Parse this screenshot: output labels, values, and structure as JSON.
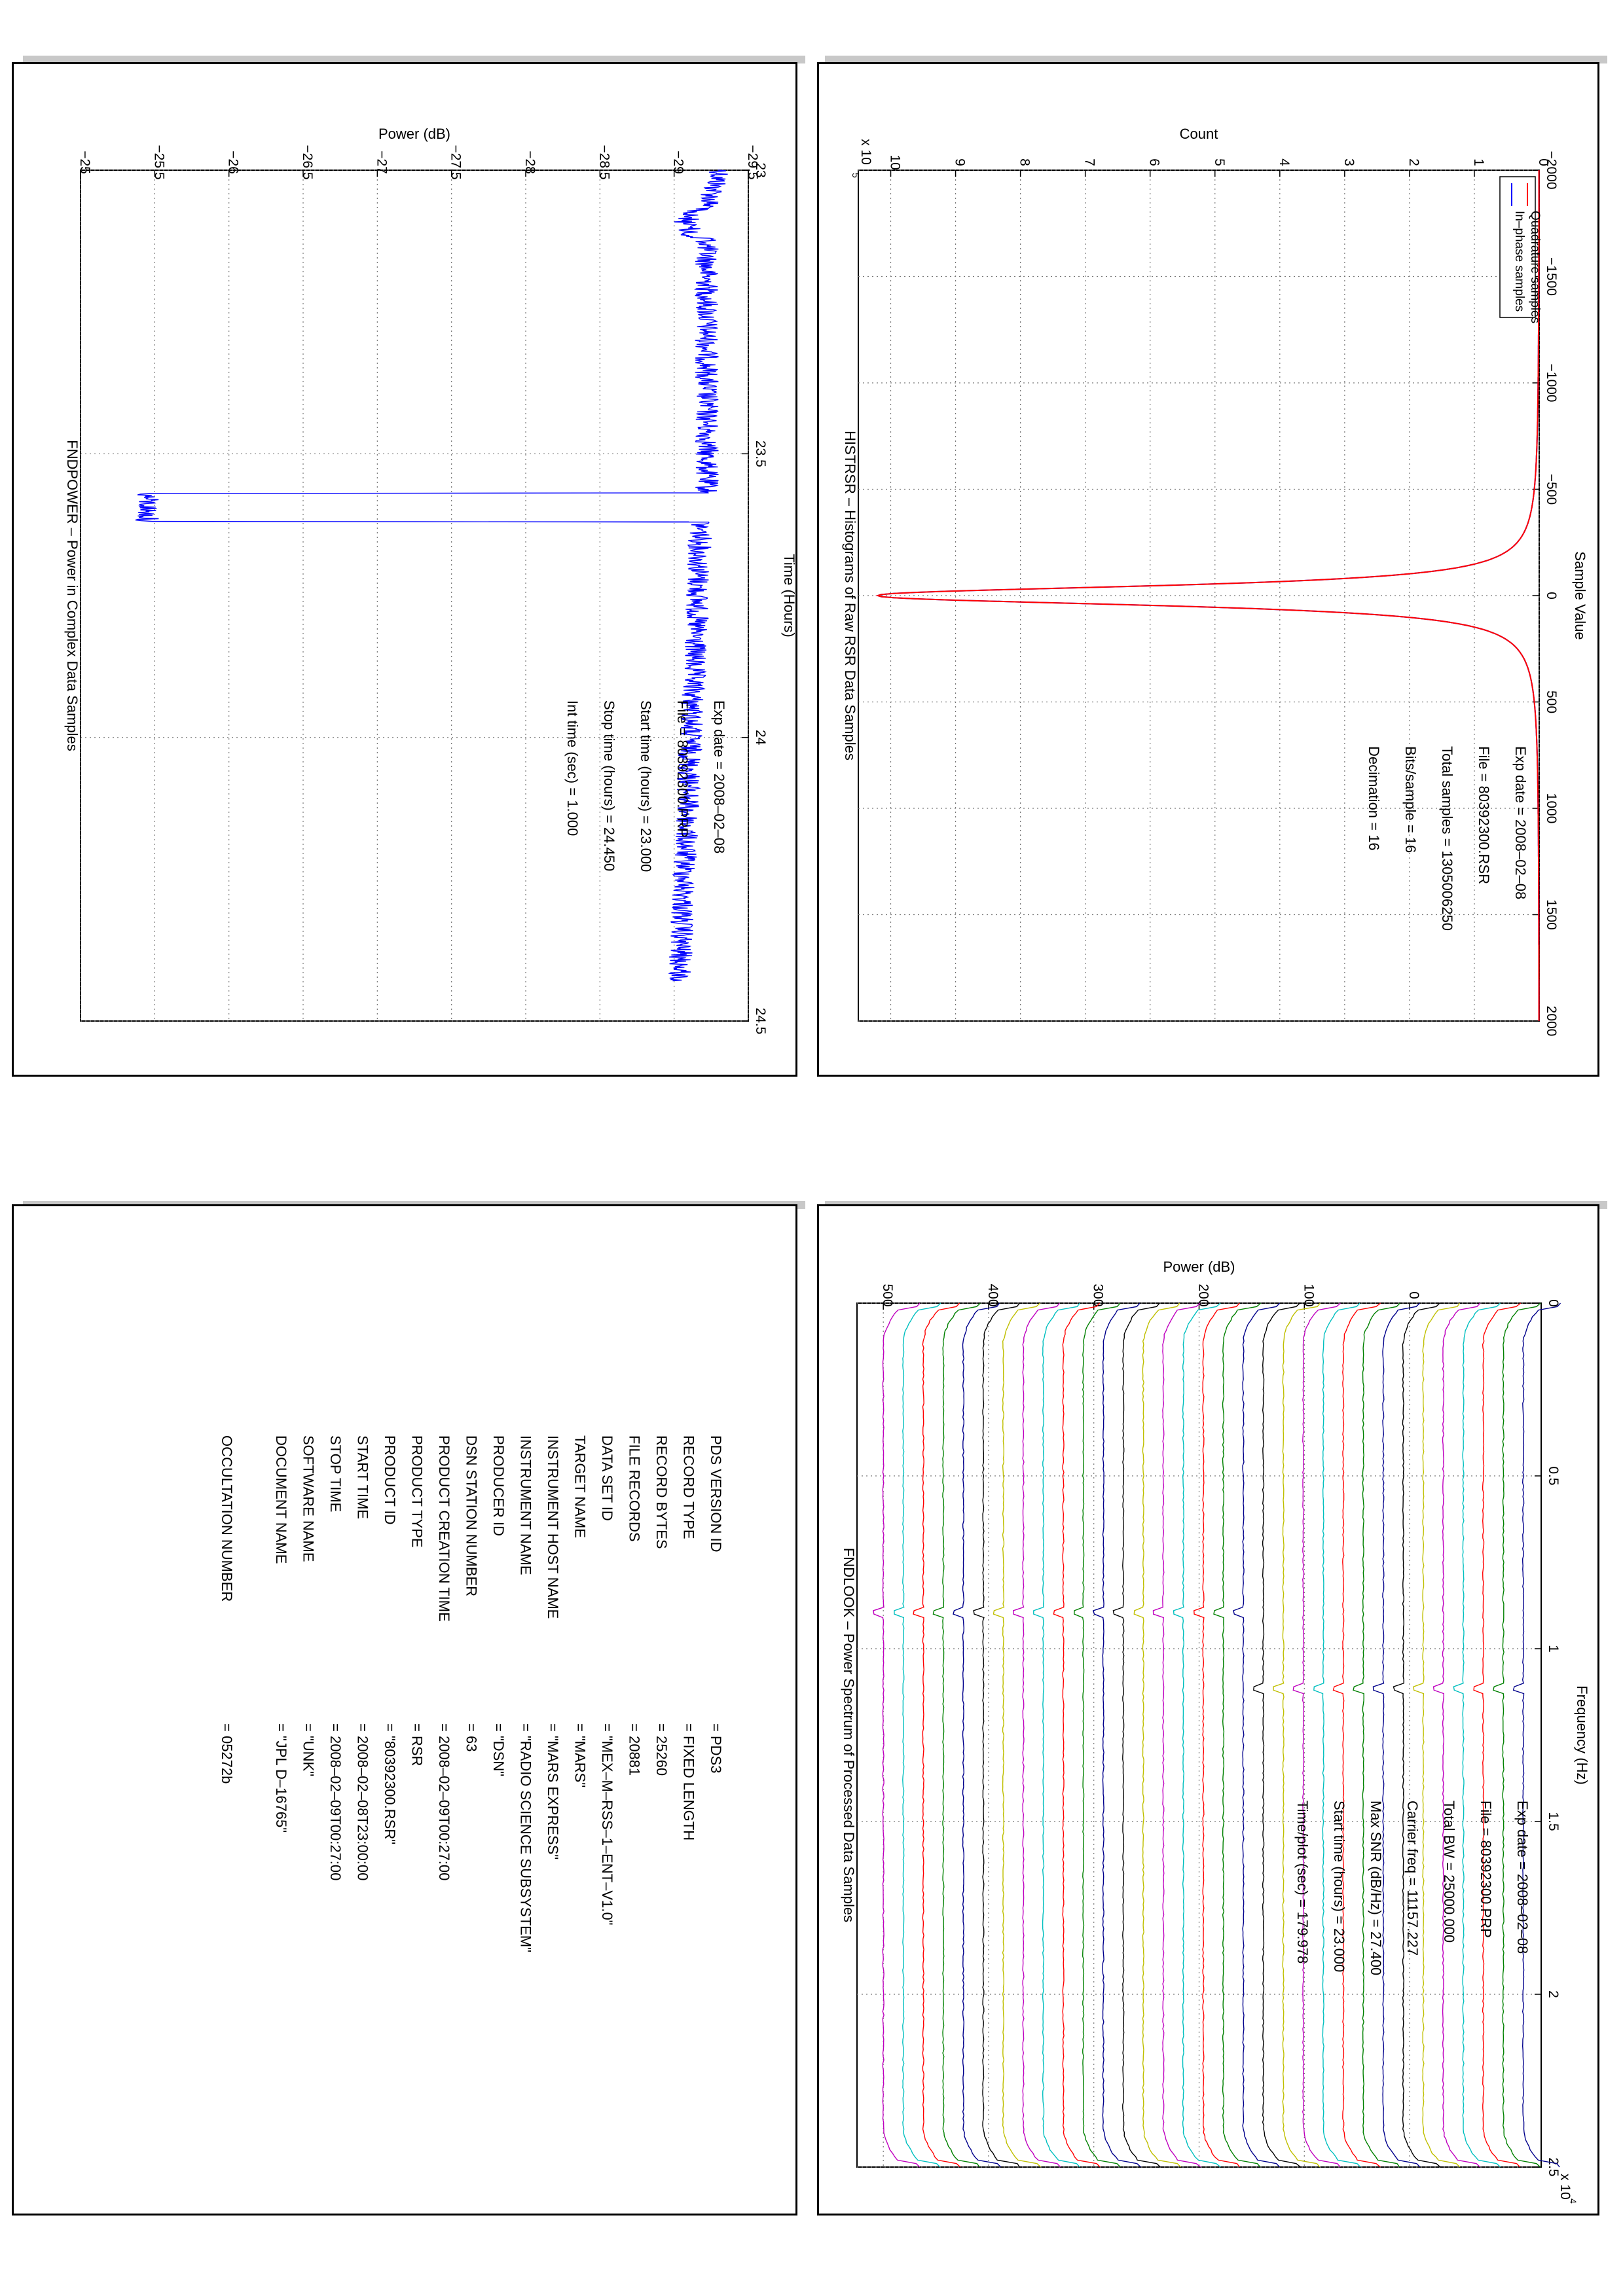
{
  "charts": {
    "histrsr": {
      "title": "HISTRSR – Histograms of Raw RSR Data Samples",
      "xlabel": "Sample Value",
      "ylabel": "Count",
      "yexp": "x 10",
      "yexp_power": "5",
      "legend": [
        "In–phase samples",
        "Quadrature samples"
      ],
      "info": [
        "Exp date = 2008–02–08",
        "File = 80392300.RSR",
        "Total samples =  1305006250",
        "Bits/sample   =        16",
        "Decimation    =        16"
      ]
    },
    "fndpower": {
      "title": "FNDPOWER – Power in Complex Data Samples",
      "xlabel": "Time (Hours)",
      "ylabel": "Power (dB)",
      "info": [
        "Exp date = 2008–02–08",
        "File = 80392300.PRP",
        "Start time (hours) = 23.000",
        "Stop time (hours)  = 24.450",
        "Int time (sec) =      1.000"
      ]
    },
    "fndlook": {
      "title": "FNDLOOK – Power Spectrum of Processed Data Samples",
      "xlabel": "Frequency (Hz)",
      "ylabel": "Power (dB)",
      "xexp": "x 10",
      "xexp_power": "4",
      "info": [
        "Exp date = 2008–02–08",
        "File = 80392300.PRP",
        "Total BW =       25000.000",
        "Carrier freq =   11157.227",
        "Max SNR (dB/Hz) =    27.400",
        "Start time (hours) =  23.000",
        "Time/plot (sec) =    179.978"
      ]
    }
  },
  "chart_data": [
    {
      "type": "line",
      "title": "HISTRSR – Histograms of Raw RSR Data Samples",
      "xlabel": "Sample Value",
      "ylabel": "Count",
      "xlim": [
        -2000,
        2000
      ],
      "ylim": [
        0,
        1050000
      ],
      "x_ticks": [
        "−2000",
        "−1500",
        "−1000",
        "−500",
        "0",
        "500",
        "1000",
        "1500",
        "2000"
      ],
      "y_ticks": [
        "0",
        "1",
        "2",
        "3",
        "4",
        "5",
        "6",
        "7",
        "8",
        "9",
        "10"
      ],
      "y_scale_factor": "x 10^5",
      "grid": true,
      "legend_position": "top-left",
      "series": [
        {
          "name": "In–phase samples",
          "color": "#0000ff",
          "peak_x": 0,
          "peak_y": 1020000,
          "sigma": 45
        },
        {
          "name": "Quadrature samples",
          "color": "#ff0000",
          "peak_x": 0,
          "peak_y": 1020000,
          "sigma": 45
        }
      ]
    },
    {
      "type": "line",
      "title": "FNDPOWER – Power in Complex Data Samples",
      "xlabel": "Time (Hours)",
      "ylabel": "Power (dB)",
      "xlim": [
        23,
        24.5
      ],
      "ylim": [
        -29.5,
        -25
      ],
      "x_ticks": [
        "23",
        "23.5",
        "24",
        "24.5"
      ],
      "y_ticks": [
        "−29.5",
        "−29",
        "−28.5",
        "−28",
        "−27.5",
        "−27",
        "−26.5",
        "−26",
        "−25.5",
        "−25"
      ],
      "grid": true,
      "series": [
        {
          "name": "",
          "color": "#0000ff",
          "segments": [
            {
              "x": [
                23.0,
                23.07,
                23.1,
                23.5,
                23.57
              ],
              "y": [
                -29.3,
                -29.25,
                -29.1,
                -29.2,
                -29.2
              ]
            },
            {
              "x": [
                23.57,
                23.62
              ],
              "y": [
                -25.45,
                -25.45
              ]
            },
            {
              "x": [
                23.62,
                24.43
              ],
              "y": [
                -29.15,
                -29.0
              ]
            }
          ]
        }
      ]
    },
    {
      "type": "line",
      "title": "FNDLOOK – Power Spectrum of Processed Data Samples",
      "xlabel": "Frequency (Hz)",
      "ylabel": "Power (dB)",
      "xlim": [
        0,
        25000
      ],
      "ylim": [
        -125,
        525
      ],
      "x_ticks": [
        "0",
        "0.5",
        "1",
        "1.5",
        "2",
        "2.5"
      ],
      "x_scale_factor": "x 10^4",
      "y_ticks": [
        "0",
        "100",
        "200",
        "300",
        "400",
        "500"
      ],
      "grid": true,
      "series_offsets_db": [
        -108,
        -89,
        -70,
        -51,
        -32,
        -13,
        6,
        25,
        44,
        63,
        82,
        101,
        120,
        139,
        158,
        177,
        196,
        215,
        234,
        253,
        272,
        291,
        310,
        329,
        348,
        367,
        386,
        405,
        424,
        443,
        462,
        481,
        500
      ],
      "colors": [
        "#00008b",
        "#008000",
        "#ff0000",
        "#00bfbf",
        "#bf00bf",
        "#bfbf00",
        "#000000"
      ],
      "carrier_freq_hz": 11157.227
    }
  ],
  "label_page": {
    "labels": [
      "PDS VERSION ID",
      "RECORD TYPE",
      "RECORD BYTES",
      "FILE RECORDS",
      "DATA SET ID",
      "TARGET NAME",
      "INSTRUMENT HOST NAME",
      "INSTRUMENT NAME",
      "PRODUCER ID",
      "DSN STATION NUMBER",
      "PRODUCT CREATION TIME",
      "PRODUCT TYPE",
      "PRODUCT ID",
      "START TIME",
      "STOP TIME",
      "SOFTWARE NAME",
      "DOCUMENT NAME",
      "",
      "OCCULTATION NUMBER"
    ],
    "values": [
      "=  PDS3",
      "=  FIXED LENGTH",
      "=  25260",
      "=  20881",
      "=  \"MEX–M–RSS–1–ENT–V1.0\"",
      "=  \"MARS\"",
      "=  \"MARS EXPRESS\"",
      "=  \"RADIO SCIENCE SUBSYSTEM\"",
      "=  \"DSN\"",
      "=  63",
      "=  2008–02–09T00:27:00",
      "=  RSR",
      "=  \"80392300.RSR\"",
      "=  2008–02–08T23:00:00",
      "=  2008–02–09T00:27:00",
      "=  \"UNK\"",
      "=  \"JPL D–16765\"",
      "",
      "=  05272b"
    ]
  }
}
